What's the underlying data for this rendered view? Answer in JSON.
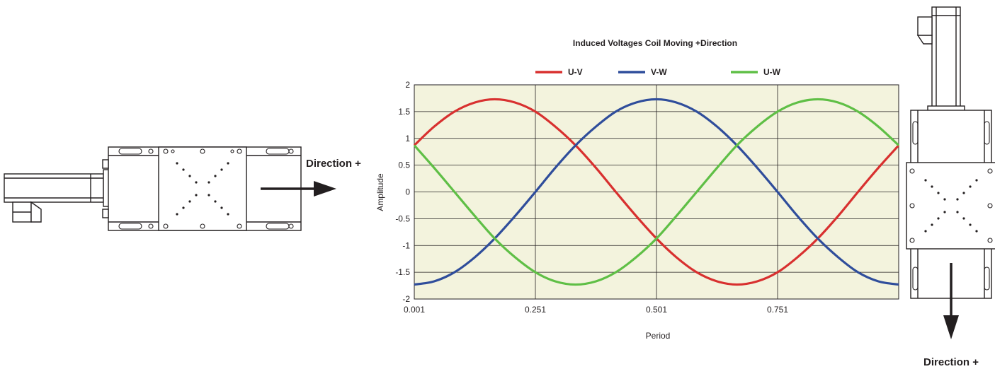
{
  "left_stage": {
    "direction_label": "Direction +"
  },
  "right_stage": {
    "direction_label": "Direction +"
  },
  "colors": {
    "plot_background": "#f3f3dd",
    "grid": "#231f20",
    "series": [
      "#d8302f",
      "#2f4d9b",
      "#5fbf46"
    ]
  },
  "chart_data": {
    "type": "line",
    "title": "Induced Voltages Coil Moving +Direction",
    "xlabel": "Period",
    "ylabel": "Amplitude",
    "xlim": [
      0.001,
      1.001
    ],
    "ylim": [
      -2,
      2
    ],
    "x_ticks": [
      0.001,
      0.251,
      0.501,
      0.751
    ],
    "x_tick_labels": [
      "0.001",
      "0.251",
      "0.501",
      "0.751"
    ],
    "y_ticks": [
      2,
      1.5,
      1,
      0.5,
      0,
      -0.5,
      -1,
      -1.5,
      -2
    ],
    "y_tick_labels": [
      "2",
      "1.5",
      "1",
      "0.5",
      "0",
      "-0.5",
      "-1",
      "-1.5",
      "-2"
    ],
    "grid": true,
    "legend_position": "top",
    "x": [
      0.001,
      0.042,
      0.084,
      0.126,
      0.167,
      0.209,
      0.251,
      0.292,
      0.334,
      0.376,
      0.417,
      0.459,
      0.501,
      0.542,
      0.584,
      0.626,
      0.667,
      0.709,
      0.751,
      0.792,
      0.834,
      0.876,
      0.917,
      0.959,
      1.001
    ],
    "series": [
      {
        "name": "U-V",
        "color": "#d8302f",
        "values": [
          0.87,
          1.22,
          1.5,
          1.67,
          1.73,
          1.67,
          1.5,
          1.22,
          0.87,
          0.45,
          0,
          -0.45,
          -0.87,
          -1.22,
          -1.5,
          -1.67,
          -1.73,
          -1.67,
          -1.5,
          -1.22,
          -0.87,
          -0.45,
          0,
          0.45,
          0.87
        ]
      },
      {
        "name": "V-W",
        "color": "#2f4d9b",
        "values": [
          -1.73,
          -1.67,
          -1.5,
          -1.22,
          -0.87,
          -0.45,
          0,
          0.45,
          0.87,
          1.22,
          1.5,
          1.67,
          1.73,
          1.67,
          1.5,
          1.22,
          0.87,
          0.45,
          0,
          -0.45,
          -0.87,
          -1.22,
          -1.5,
          -1.67,
          -1.73
        ]
      },
      {
        "name": "U-W",
        "color": "#5fbf46",
        "values": [
          0.87,
          0.45,
          0,
          -0.45,
          -0.87,
          -1.22,
          -1.5,
          -1.67,
          -1.73,
          -1.67,
          -1.5,
          -1.22,
          -0.87,
          -0.45,
          0,
          0.45,
          0.87,
          1.22,
          1.5,
          1.67,
          1.73,
          1.67,
          1.5,
          1.22,
          0.87
        ]
      }
    ]
  }
}
